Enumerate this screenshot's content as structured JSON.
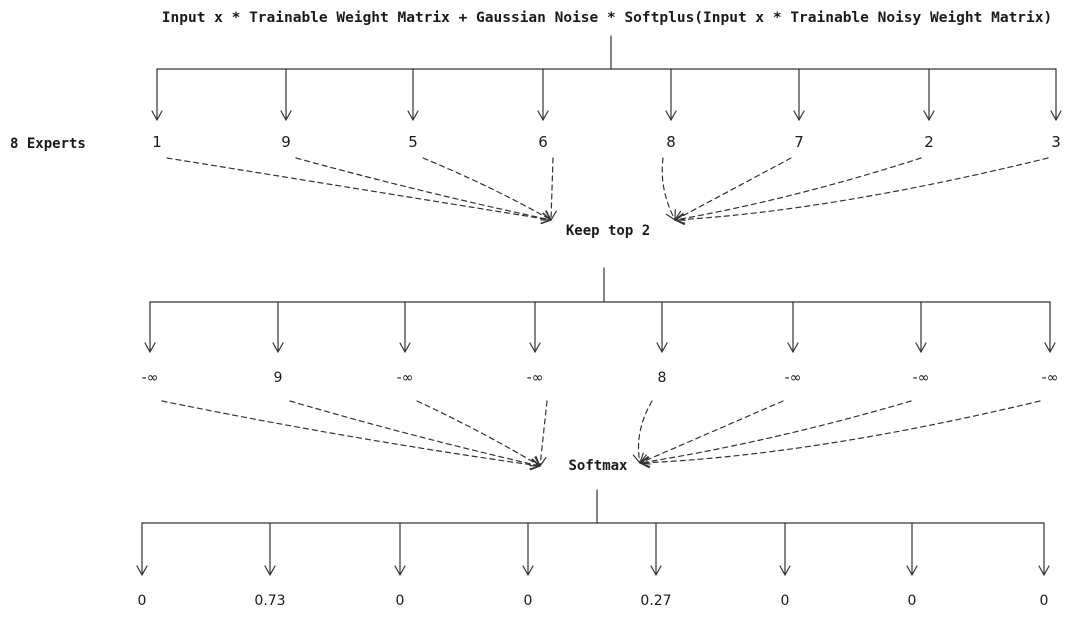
{
  "formula": "Input x * Trainable Weight Matrix + Gaussian Noise * Softplus(Input x * Trainable Noisy Weight Matrix)",
  "experts_label": "8 Experts",
  "expert_scores": [
    "1",
    "9",
    "5",
    "6",
    "8",
    "7",
    "2",
    "3"
  ],
  "keep_top_label": "Keep top 2",
  "masked_scores": [
    "-∞",
    "9",
    "-∞",
    "-∞",
    "8",
    "-∞",
    "-∞",
    "-∞"
  ],
  "softmax_label": "Softmax",
  "probabilities": [
    "0",
    "0.73",
    "0",
    "0",
    "0.27",
    "0",
    "0",
    "0"
  ],
  "colors": {
    "ink": "#1a1a1a",
    "line": "#333333",
    "background": "#ffffff"
  }
}
